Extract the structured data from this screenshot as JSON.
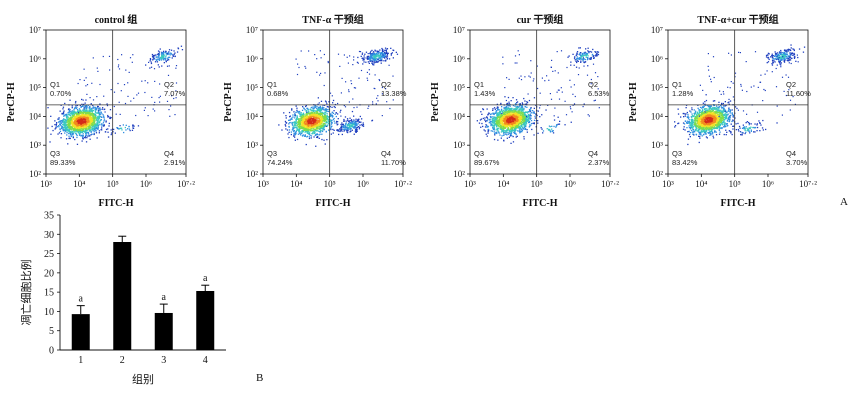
{
  "chart_data": [
    {
      "type": "scatter",
      "title": "control 组",
      "xlabel": "FITC-H",
      "ylabel": "PerCP-H",
      "x_ticks": [
        "10³",
        "10⁴",
        "10⁵",
        "10⁶",
        "10⁷·²"
      ],
      "y_ticks": [
        "10⁷",
        "10⁶",
        "10⁵",
        "10⁴",
        "10³",
        "10²"
      ],
      "xlim": [
        3,
        7.2
      ],
      "ylim": [
        2,
        7
      ],
      "scale": "log",
      "gate": {
        "x": 5.0,
        "y": 4.4
      },
      "quadrants": [
        {
          "label": "Q1",
          "value": "0.70%"
        },
        {
          "label": "Q2",
          "value": "7.07%"
        },
        {
          "label": "Q3",
          "value": "89.33%"
        },
        {
          "label": "Q4",
          "value": "2.91%"
        }
      ],
      "clusters": [
        [
          4.05,
          3.85,
          0.9
        ],
        [
          6.5,
          6.1,
          0.08
        ],
        [
          5.3,
          3.6,
          0.02
        ]
      ]
    },
    {
      "type": "scatter",
      "title": "TNF-α 干预组",
      "xlabel": "FITC-H",
      "ylabel": "PerCP-H",
      "x_ticks": [
        "10³",
        "10⁴",
        "10⁵",
        "10⁶",
        "10⁷·²"
      ],
      "y_ticks": [
        "10⁷",
        "10⁶",
        "10⁵",
        "10⁴",
        "10³",
        "10²"
      ],
      "xlim": [
        3,
        7.2
      ],
      "ylim": [
        2,
        7
      ],
      "scale": "log",
      "gate": {
        "x": 5.0,
        "y": 4.4
      },
      "quadrants": [
        {
          "label": "Q1",
          "value": "0.68%"
        },
        {
          "label": "Q2",
          "value": "13.38%"
        },
        {
          "label": "Q3",
          "value": "74.24%"
        },
        {
          "label": "Q4",
          "value": "11.70%"
        }
      ],
      "clusters": [
        [
          4.45,
          3.85,
          0.74
        ],
        [
          6.4,
          6.1,
          0.14
        ],
        [
          5.6,
          3.7,
          0.12
        ]
      ]
    },
    {
      "type": "scatter",
      "title": "cur 干预组",
      "xlabel": "FITC-H",
      "ylabel": "PerCP-H",
      "x_ticks": [
        "10³",
        "10⁴",
        "10⁵",
        "10⁶",
        "10⁷·²"
      ],
      "y_ticks": [
        "10⁷",
        "10⁶",
        "10⁵",
        "10⁴",
        "10³",
        "10²"
      ],
      "xlim": [
        3,
        7.2
      ],
      "ylim": [
        2,
        7
      ],
      "scale": "log",
      "gate": {
        "x": 5.0,
        "y": 4.4
      },
      "quadrants": [
        {
          "label": "Q1",
          "value": "1.43%"
        },
        {
          "label": "Q2",
          "value": "6.53%"
        },
        {
          "label": "Q3",
          "value": "89.67%"
        },
        {
          "label": "Q4",
          "value": "2.37%"
        }
      ],
      "clusters": [
        [
          4.2,
          3.9,
          0.9
        ],
        [
          6.4,
          6.1,
          0.07
        ],
        [
          5.4,
          3.6,
          0.02
        ]
      ]
    },
    {
      "type": "scatter",
      "title": "TNF-α+cur 干预组",
      "xlabel": "FITC-H",
      "ylabel": "PerCP-H",
      "x_ticks": [
        "10³",
        "10⁴",
        "10⁵",
        "10⁶",
        "10⁷·²"
      ],
      "y_ticks": [
        "10⁷",
        "10⁶",
        "10⁵",
        "10⁴",
        "10³",
        "10²"
      ],
      "xlim": [
        3,
        7.2
      ],
      "ylim": [
        2,
        7
      ],
      "scale": "log",
      "gate": {
        "x": 5.0,
        "y": 4.4
      },
      "quadrants": [
        {
          "label": "Q1",
          "value": "1.28%"
        },
        {
          "label": "Q2",
          "value": "11.60%"
        },
        {
          "label": "Q3",
          "value": "83.42%"
        },
        {
          "label": "Q4",
          "value": "3.70%"
        }
      ],
      "clusters": [
        [
          4.2,
          3.9,
          0.84
        ],
        [
          6.4,
          6.1,
          0.12
        ],
        [
          5.4,
          3.6,
          0.04
        ]
      ]
    },
    {
      "type": "bar",
      "categories": [
        "1",
        "2",
        "3",
        "4"
      ],
      "values": [
        9.3,
        28.0,
        9.6,
        15.3
      ],
      "errors": [
        2.2,
        1.5,
        2.3,
        1.5
      ],
      "annotations": [
        "a",
        "",
        "a",
        "a"
      ],
      "xlabel": "组别",
      "ylabel": "凋亡细胞比例",
      "ylim": [
        0,
        35
      ],
      "yticks": [
        "0",
        "5",
        "10",
        "15",
        "20",
        "25",
        "30",
        "35"
      ]
    }
  ],
  "panel_labels": {
    "a": "A",
    "b": "B"
  },
  "colors": {
    "density": [
      "#1f3fbf",
      "#2f8fe0",
      "#39c7c0",
      "#7fdc4a",
      "#f2e227",
      "#f28a1f",
      "#d42a1a"
    ],
    "bar": "#000000",
    "axis": "#111111",
    "gate": "#333333"
  }
}
